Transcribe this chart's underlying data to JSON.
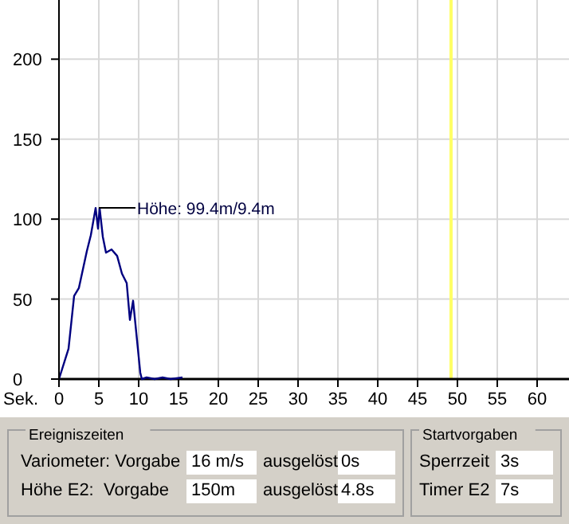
{
  "chart_data": {
    "type": "line",
    "xlabel": "Sek.",
    "x": [
      0,
      1.2,
      1.9,
      2.5,
      3.5,
      4,
      4.6,
      4.9,
      5.1,
      5.5,
      5.9,
      6.6,
      7.3,
      7.9,
      8.5,
      8.9,
      9.3,
      10.2,
      10.4,
      11,
      12,
      13,
      14,
      15.5
    ],
    "series": [
      {
        "color": "#000080",
        "values": [
          0,
          19,
          52,
          57,
          80,
          90,
          107,
          94,
          107,
          89,
          79,
          81,
          77,
          66,
          60,
          37,
          49,
          4,
          0,
          1,
          0,
          1,
          0,
          1
        ]
      }
    ],
    "xlim": [
      0,
      64
    ],
    "xticks": [
      0,
      5,
      10,
      15,
      20,
      25,
      30,
      35,
      40,
      45,
      50,
      55,
      60
    ],
    "ylim": [
      0,
      237
    ],
    "yticks": [
      0,
      50,
      100,
      150,
      200
    ],
    "grid": true,
    "ref_lines": [
      {
        "axis": "x",
        "value": 49.2,
        "color": "#ffff66"
      }
    ],
    "annotations": [
      {
        "text": "Höhe: 99.4m/9.4m",
        "x": 5,
        "y": 107
      },
      "Ereigniszeiten",
      "Variometer: Vorgabe",
      "16 m/s",
      "ausgelöst",
      "0s",
      "Höhe E2:  Vorgabe",
      "150m",
      "ausgelöst",
      "4.8s",
      "Startvorgaben",
      "Sperrzeit",
      "3s",
      "Timer E2",
      "7s"
    ]
  }
}
